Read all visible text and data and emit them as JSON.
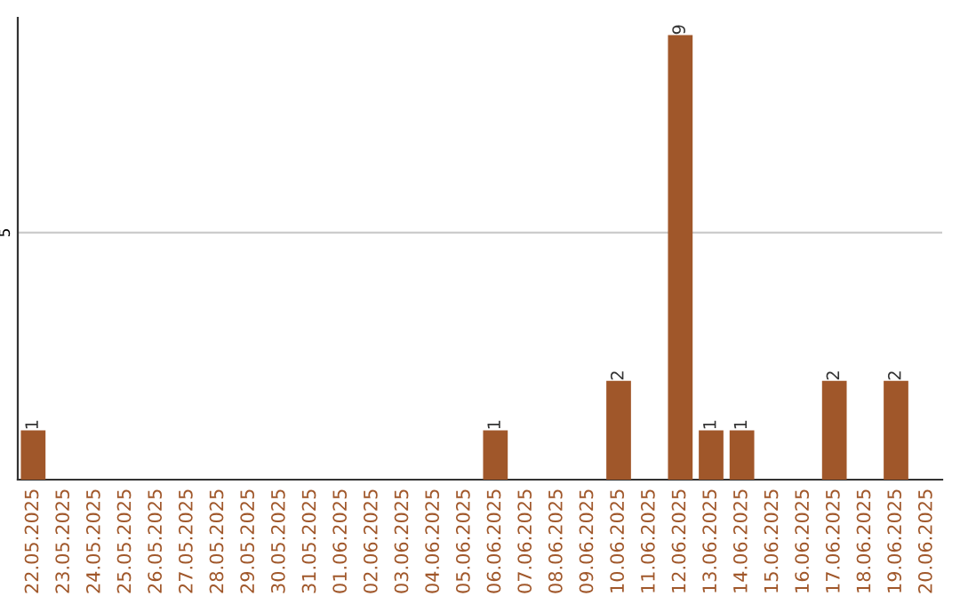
{
  "chart_data": {
    "type": "bar",
    "categories": [
      "22.05.2025",
      "23.05.2025",
      "24.05.2025",
      "25.05.2025",
      "26.05.2025",
      "27.05.2025",
      "28.05.2025",
      "29.05.2025",
      "30.05.2025",
      "31.05.2025",
      "01.06.2025",
      "02.06.2025",
      "03.06.2025",
      "04.06.2025",
      "05.06.2025",
      "06.06.2025",
      "07.06.2025",
      "08.06.2025",
      "09.06.2025",
      "10.06.2025",
      "11.06.2025",
      "12.06.2025",
      "13.06.2025",
      "14.06.2025",
      "15.06.2025",
      "16.06.2025",
      "17.06.2025",
      "18.06.2025",
      "19.06.2025",
      "20.06.2025"
    ],
    "values": [
      1,
      0,
      0,
      0,
      0,
      0,
      0,
      0,
      0,
      0,
      0,
      0,
      0,
      0,
      0,
      1,
      0,
      0,
      0,
      2,
      0,
      9,
      1,
      1,
      0,
      0,
      2,
      0,
      2,
      0
    ],
    "value_labels": [
      "1",
      null,
      null,
      null,
      null,
      null,
      null,
      null,
      null,
      null,
      null,
      null,
      null,
      null,
      null,
      "1",
      null,
      null,
      null,
      "2",
      null,
      "9",
      "1",
      "1",
      null,
      null,
      "2",
      null,
      "2",
      null
    ],
    "color": "#a0572a",
    "ylim": [
      0,
      9.35
    ],
    "yticks": [
      5
    ],
    "grid": "y",
    "legend": false
  }
}
